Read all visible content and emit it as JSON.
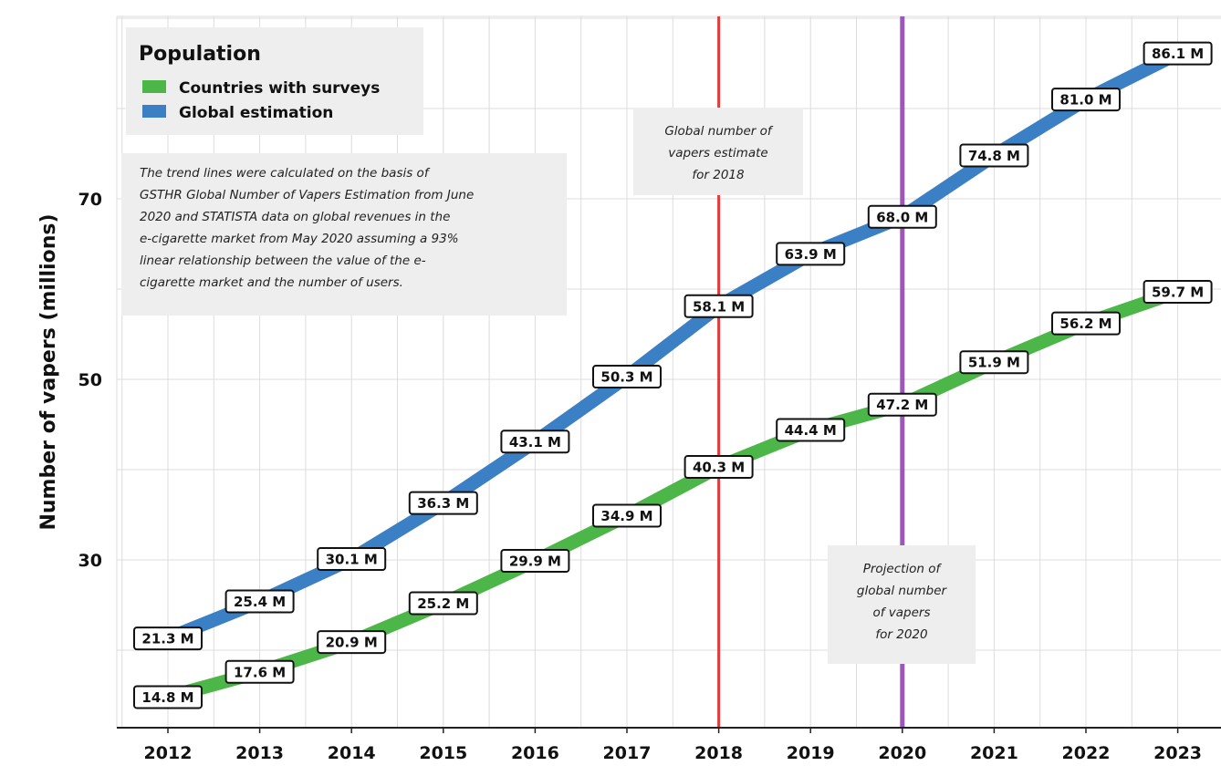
{
  "chart_data": {
    "type": "line",
    "ylabel": "Number of vapers (millions)",
    "xlabel": "",
    "title": "",
    "categories": [
      "2012",
      "2013",
      "2014",
      "2015",
      "2016",
      "2017",
      "2018",
      "2019",
      "2020",
      "2021",
      "2022",
      "2023"
    ],
    "x_ticks": [
      "2012",
      "2013",
      "2014",
      "2015",
      "2016",
      "2017",
      "2018",
      "2019",
      "2020",
      "2021",
      "2022",
      "2023"
    ],
    "y_ticks": [
      30,
      50,
      70
    ],
    "ylim": [
      12,
      90
    ],
    "grid": true,
    "legend": {
      "title": "Population",
      "placement": "top-left",
      "items": [
        {
          "label": "Countries with surveys",
          "color": "#4cb748"
        },
        {
          "label": "Global estimation",
          "color": "#3b7fc4"
        }
      ]
    },
    "series": [
      {
        "name": "Countries with surveys",
        "color": "#4cb748",
        "values": [
          14.8,
          17.6,
          20.9,
          25.2,
          29.9,
          34.9,
          40.3,
          44.4,
          47.2,
          51.9,
          56.2,
          59.7
        ],
        "labels": [
          "14.8 M",
          "17.6 M",
          "20.9 M",
          "25.2 M",
          "29.9 M",
          "34.9 M",
          "40.3 M",
          "44.4 M",
          "47.2 M",
          "51.9 M",
          "56.2 M",
          "59.7 M"
        ]
      },
      {
        "name": "Global estimation",
        "color": "#3b7fc4",
        "values": [
          21.3,
          25.4,
          30.1,
          36.3,
          43.1,
          50.3,
          58.1,
          63.9,
          68.0,
          74.8,
          81.0,
          86.1
        ],
        "labels": [
          "21.3 M",
          "25.4 M",
          "30.1 M",
          "36.3 M",
          "43.1 M",
          "50.3 M",
          "58.1 M",
          "63.9 M",
          "68.0 M",
          "74.8 M",
          "81.0 M",
          "86.1 M"
        ]
      }
    ],
    "vertical_lines": [
      {
        "x": "2018",
        "color": "#e63a3a",
        "note": [
          "Global number of",
          "vapers estimate",
          "for 2018"
        ]
      },
      {
        "x": "2020",
        "color": "#9b59b6",
        "note": [
          "Projection of",
          "global number",
          "of vapers",
          "for 2020"
        ]
      }
    ],
    "annotation": [
      "The trend lines were calculated on the basis of",
      "GSTHR Global Number of Vapers Estimation from June",
      "2020 and STATISTA data on global revenues in the",
      "e-cigarette market from May 2020 assuming a 93%",
      "linear relationship between the value of the e-",
      "cigarette market and the number of users."
    ]
  }
}
